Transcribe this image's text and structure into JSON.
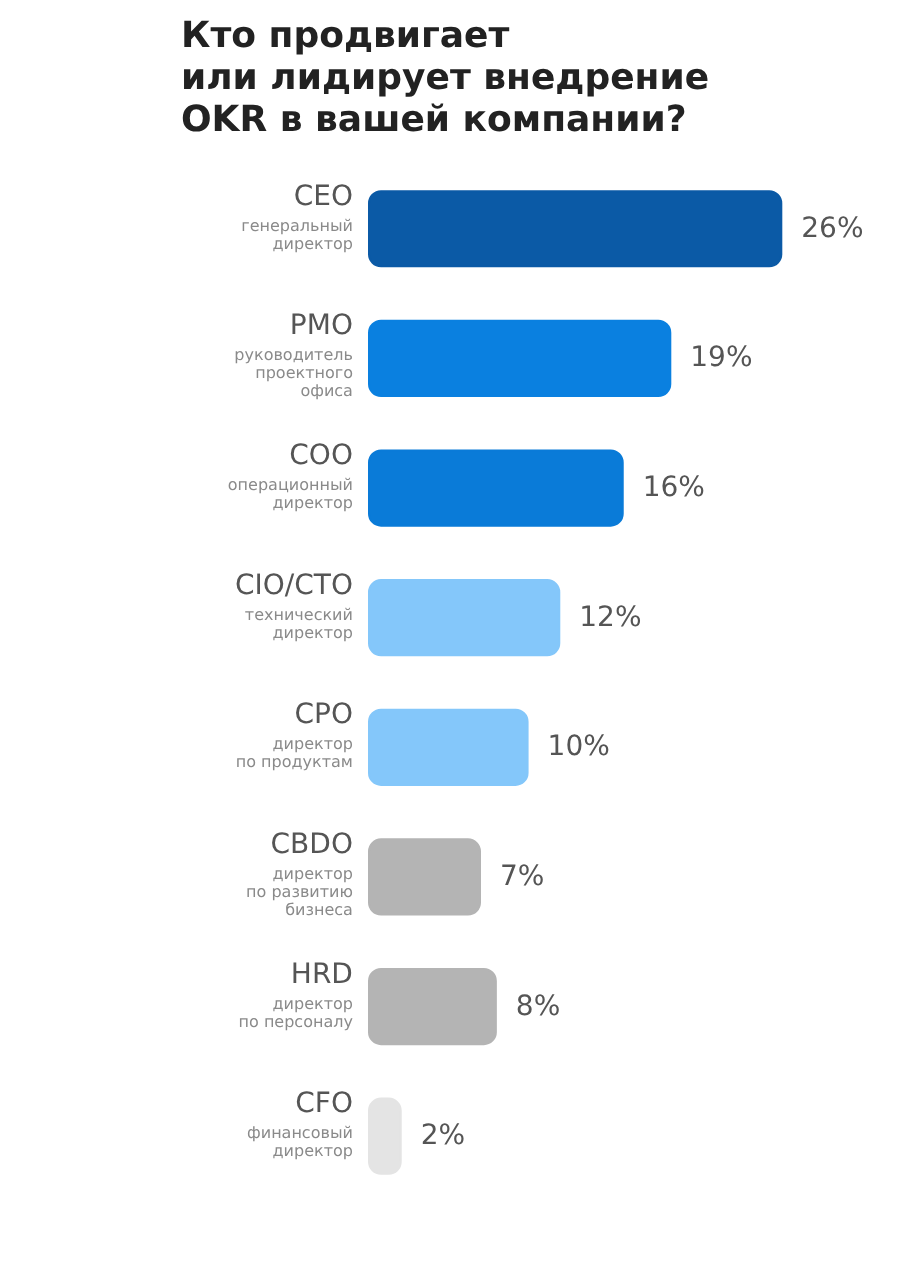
{
  "chart_data": {
    "type": "bar",
    "orientation": "horizontal",
    "title": "Кто продвигает\nили лидирует внедрение\nOKR в вашей компании?",
    "categories": [
      "CEO\nгенеральный\nдиректор",
      "PMO\nруководитель\nпроектного\nофиса",
      "COO\nоперационный\nдиректор",
      "CIO/CTO\nтехнический\nдиректор",
      "CPO\nдиректор\nпо продуктам",
      "CBDO\nдиректор\nпо развитию\nбизнеса",
      "HRD\nдиректор\nпо персоналу",
      "CFO\nфинансовый\nдиректор"
    ],
    "values": [
      26,
      19,
      16,
      12,
      10,
      7,
      8,
      2
    ],
    "colors": [
      "#0b5aa6",
      "#0a80e0",
      "#0a7bd8",
      "#84c7fa",
      "#84c7fa",
      "#b4b4b4",
      "#b4b4b4",
      "#e4e4e4"
    ],
    "value_labels": [
      "26%",
      "19%",
      "16%",
      "12%",
      "10%",
      "7%",
      "8%",
      "2%"
    ]
  }
}
